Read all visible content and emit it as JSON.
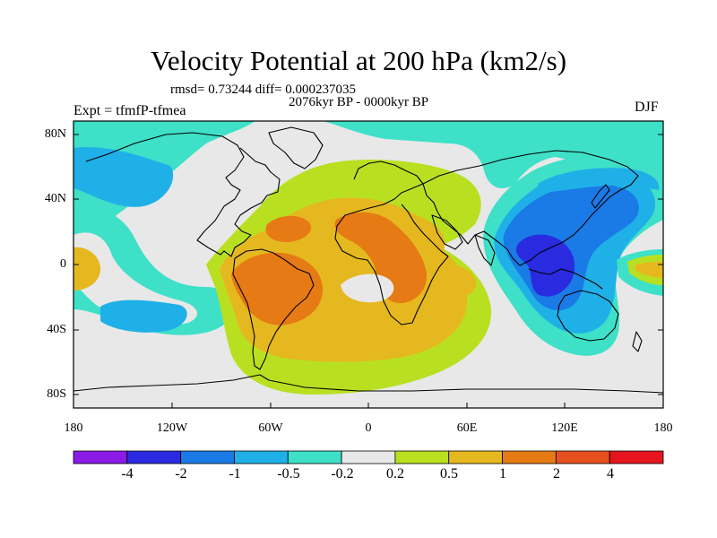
{
  "header": {
    "title": "Velocity Potential at 200 hPa (km2/s)",
    "stats": "rmsd= 0.73244 diff= 0.000237035",
    "period": "2076kyr BP - 0000kyr BP",
    "expt": "Expt = tfmfP-tfmea",
    "season": "DJF"
  },
  "axes": {
    "lat_labels": [
      "80N",
      "40N",
      "0",
      "40S",
      "80S"
    ],
    "lon_labels": [
      "180",
      "120W",
      "60W",
      "0",
      "60E",
      "120E",
      "180"
    ]
  },
  "colorbar": {
    "labels": [
      "-4",
      "-2",
      "-1",
      "-0.5",
      "-0.2",
      "0.2",
      "0.5",
      "1",
      "2",
      "4"
    ],
    "colors": [
      "#8a1ae6",
      "#2a2ae0",
      "#1a7ae6",
      "#1fb0e8",
      "#3ee0c8",
      "#e8e8e8",
      "#b8e021",
      "#e6b81f",
      "#e67a14",
      "#e6501e",
      "#e6141e"
    ]
  },
  "palette": {
    "neutral": "#e8e8e8",
    "lime": "#b8e021",
    "gold": "#e6b81f",
    "orange": "#e67a14",
    "teal": "#3ee0c8",
    "cyan": "#1fb0e8",
    "blue": "#1a7ae6",
    "navy": "#2a2ae0",
    "coast": "#000000"
  }
}
